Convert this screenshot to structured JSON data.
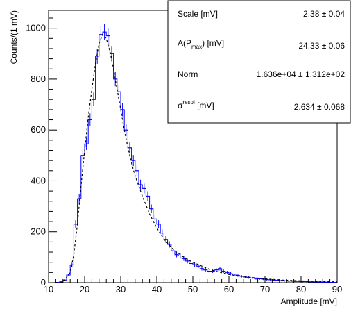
{
  "chart_data": {
    "type": "histogram",
    "xlabel": "Amplitude [mV]",
    "ylabel": "Counts/(1 mV)",
    "xlim": [
      10,
      90
    ],
    "ylim": [
      0,
      1070
    ],
    "xticks": [
      "10",
      "20",
      "30",
      "40",
      "50",
      "60",
      "70",
      "80",
      "90"
    ],
    "yticks": [
      "0",
      "200",
      "400",
      "600",
      "800",
      "1000"
    ],
    "bin_width_mV": 1,
    "hist_color": "#0000ff",
    "fit_color": "#000000",
    "fit_style": "dashed",
    "bins": [
      {
        "x": 10.5,
        "y": 0
      },
      {
        "x": 11.5,
        "y": 0
      },
      {
        "x": 12.5,
        "y": 1
      },
      {
        "x": 13.5,
        "y": 3
      },
      {
        "x": 14.5,
        "y": 10
      },
      {
        "x": 15.5,
        "y": 30
      },
      {
        "x": 16.5,
        "y": 70
      },
      {
        "x": 17.5,
        "y": 230
      },
      {
        "x": 18.5,
        "y": 330
      },
      {
        "x": 19.5,
        "y": 500
      },
      {
        "x": 20.5,
        "y": 545
      },
      {
        "x": 21.5,
        "y": 640
      },
      {
        "x": 22.5,
        "y": 720
      },
      {
        "x": 23.5,
        "y": 890
      },
      {
        "x": 24.5,
        "y": 975
      },
      {
        "x": 25.5,
        "y": 985
      },
      {
        "x": 26.5,
        "y": 970
      },
      {
        "x": 27.5,
        "y": 900
      },
      {
        "x": 28.5,
        "y": 800
      },
      {
        "x": 29.5,
        "y": 750
      },
      {
        "x": 30.5,
        "y": 680
      },
      {
        "x": 31.5,
        "y": 600
      },
      {
        "x": 32.5,
        "y": 530
      },
      {
        "x": 33.5,
        "y": 480
      },
      {
        "x": 34.5,
        "y": 440
      },
      {
        "x": 35.5,
        "y": 385
      },
      {
        "x": 36.5,
        "y": 370
      },
      {
        "x": 37.5,
        "y": 340
      },
      {
        "x": 38.5,
        "y": 290
      },
      {
        "x": 39.5,
        "y": 250
      },
      {
        "x": 40.5,
        "y": 230
      },
      {
        "x": 41.5,
        "y": 195
      },
      {
        "x": 42.5,
        "y": 170
      },
      {
        "x": 43.5,
        "y": 150
      },
      {
        "x": 44.5,
        "y": 125
      },
      {
        "x": 45.5,
        "y": 110
      },
      {
        "x": 46.5,
        "y": 105
      },
      {
        "x": 47.5,
        "y": 95
      },
      {
        "x": 48.5,
        "y": 85
      },
      {
        "x": 49.5,
        "y": 75
      },
      {
        "x": 50.5,
        "y": 70
      },
      {
        "x": 51.5,
        "y": 65
      },
      {
        "x": 52.5,
        "y": 55
      },
      {
        "x": 53.5,
        "y": 50
      },
      {
        "x": 54.5,
        "y": 45
      },
      {
        "x": 55.5,
        "y": 45
      },
      {
        "x": 56.5,
        "y": 50
      },
      {
        "x": 57.5,
        "y": 55
      },
      {
        "x": 58.5,
        "y": 45
      },
      {
        "x": 59.5,
        "y": 40
      },
      {
        "x": 60.5,
        "y": 35
      },
      {
        "x": 61.5,
        "y": 30
      },
      {
        "x": 62.5,
        "y": 28
      },
      {
        "x": 63.5,
        "y": 25
      },
      {
        "x": 64.5,
        "y": 22
      },
      {
        "x": 65.5,
        "y": 20
      },
      {
        "x": 66.5,
        "y": 18
      },
      {
        "x": 67.5,
        "y": 16
      },
      {
        "x": 68.5,
        "y": 15
      },
      {
        "x": 69.5,
        "y": 14
      },
      {
        "x": 70.5,
        "y": 12
      },
      {
        "x": 71.5,
        "y": 11
      },
      {
        "x": 72.5,
        "y": 10
      },
      {
        "x": 73.5,
        "y": 9
      },
      {
        "x": 74.5,
        "y": 8
      },
      {
        "x": 75.5,
        "y": 7
      },
      {
        "x": 76.5,
        "y": 6
      },
      {
        "x": 77.5,
        "y": 6
      },
      {
        "x": 78.5,
        "y": 5
      },
      {
        "x": 79.5,
        "y": 5
      },
      {
        "x": 80.5,
        "y": 4
      },
      {
        "x": 81.5,
        "y": 4
      },
      {
        "x": 82.5,
        "y": 3
      },
      {
        "x": 83.5,
        "y": 3
      },
      {
        "x": 84.5,
        "y": 3
      },
      {
        "x": 85.5,
        "y": 2
      },
      {
        "x": 86.5,
        "y": 2
      },
      {
        "x": 87.5,
        "y": 2
      },
      {
        "x": 88.5,
        "y": 1
      },
      {
        "x": 89.5,
        "y": 1
      }
    ],
    "fit_curve": {
      "x": [
        12,
        14,
        16,
        17,
        18,
        19,
        20,
        21,
        22,
        23,
        24,
        25,
        26,
        27,
        28,
        29,
        30,
        31,
        32,
        33,
        34,
        35,
        36,
        38,
        40,
        42,
        45,
        48,
        50,
        55,
        60,
        65,
        70,
        75,
        80,
        85,
        90
      ],
      "y": [
        0,
        3,
        40,
        110,
        230,
        380,
        520,
        650,
        760,
        860,
        940,
        975,
        960,
        910,
        840,
        760,
        680,
        600,
        530,
        470,
        420,
        380,
        340,
        270,
        215,
        170,
        125,
        95,
        80,
        50,
        32,
        22,
        15,
        10,
        7,
        5,
        3
      ]
    },
    "stats_box": {
      "rows": [
        {
          "label": "Scale [mV]",
          "value": "2.38 ± 0.04"
        },
        {
          "label_main": "A(P",
          "label_sub": "max",
          "label_tail": ") [mV]",
          "value": "24.33 ± 0.06"
        },
        {
          "label": "Norm",
          "value": "1.636e+04 ± 1.312e+02"
        },
        {
          "label_main": "σ",
          "label_sup": "resol",
          "label_tail": " [mV]",
          "value": "2.634 ± 0.068"
        }
      ]
    }
  }
}
